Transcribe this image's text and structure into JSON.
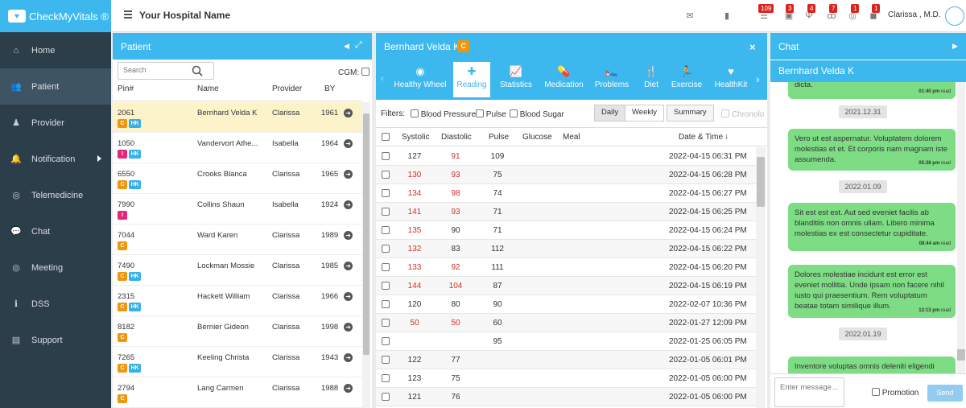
{
  "brand": "CheckMyVitals ®",
  "sidebar": [
    {
      "label": "Home",
      "icon": "home-icon"
    },
    {
      "label": "Patient",
      "icon": "users-icon",
      "active": true
    },
    {
      "label": "Provider",
      "icon": "provider-icon"
    },
    {
      "label": "Notification",
      "icon": "bell-icon"
    },
    {
      "label": "Telemedicine",
      "icon": "whatsapp-icon"
    },
    {
      "label": "Chat",
      "icon": "chat-icon"
    },
    {
      "label": "Meeting",
      "icon": "meeting-icon"
    },
    {
      "label": "DSS",
      "icon": "info-icon"
    },
    {
      "label": "Support",
      "icon": "support-icon"
    }
  ],
  "topbar": {
    "hospital": "Your Hospital Name",
    "user": "Clarissa , M.D.",
    "badges": [
      "109",
      "3",
      "4",
      "7",
      "1",
      "1"
    ]
  },
  "patient": {
    "title": "Patient",
    "search_placeholder": "Search",
    "cgm": "CGM:",
    "cols": [
      "Pin#",
      "Name",
      "Provider",
      "BY"
    ],
    "rows": [
      {
        "pin": "2061",
        "name": "Bernhard Velda K",
        "provider": "Clarissa",
        "by": "1961",
        "tags": [
          "C",
          "HK"
        ]
      },
      {
        "pin": "1050",
        "name": "Vandervort Athe...",
        "provider": "Isabella",
        "by": "1964",
        "tags": [
          "I",
          "HK"
        ]
      },
      {
        "pin": "6550",
        "name": "Crooks Blanca",
        "provider": "Clarissa",
        "by": "1965",
        "tags": [
          "C",
          "HK"
        ]
      },
      {
        "pin": "7990",
        "name": "Collins Shaun",
        "provider": "Isabella",
        "by": "1924",
        "tags": [
          "I"
        ]
      },
      {
        "pin": "7044",
        "name": "Ward Karen",
        "provider": "Clarissa",
        "by": "1989",
        "tags": [
          "C"
        ]
      },
      {
        "pin": "7490",
        "name": "Lockman Mossie",
        "provider": "Clarissa",
        "by": "1985",
        "tags": [
          "C",
          "HK"
        ]
      },
      {
        "pin": "2315",
        "name": "Hackett William",
        "provider": "Clarissa",
        "by": "1966",
        "tags": [
          "C",
          "HK"
        ]
      },
      {
        "pin": "8182",
        "name": "Bernier Gideon",
        "provider": "Clarissa",
        "by": "1998",
        "tags": [
          "C"
        ]
      },
      {
        "pin": "7265",
        "name": "Keeling Christa",
        "provider": "Clarissa",
        "by": "1943",
        "tags": [
          "C",
          "HK"
        ]
      },
      {
        "pin": "2794",
        "name": "Lang Carmen",
        "provider": "Clarissa",
        "by": "1988",
        "tags": [
          "C"
        ]
      }
    ]
  },
  "reading": {
    "title": "Bernhard Velda K",
    "badge": "C",
    "tabs": [
      "Healthy Wheel",
      "Reading",
      "Statistics",
      "Medication",
      "Problems",
      "Diet",
      "Exercise",
      "HealthKit"
    ],
    "filters": {
      "label": "Filters:",
      "bp": "Blood Pressure",
      "pulse": "Pulse",
      "sugar": "Blood Sugar",
      "daily": "Daily",
      "weekly": "Weekly",
      "summary": "Summary",
      "chrono": "Chronolo"
    },
    "cols": [
      "Systolic",
      "Diastolic",
      "Pulse",
      "Glucose",
      "Meal",
      "Date & Time"
    ],
    "rows": [
      {
        "sys": "127",
        "dia": "91",
        "pulse": "109",
        "dt": "2022-04-15 06:31 PM",
        "sr": 0,
        "dr": 1
      },
      {
        "sys": "130",
        "dia": "93",
        "pulse": "75",
        "dt": "2022-04-15 06:28 PM",
        "sr": 1,
        "dr": 1
      },
      {
        "sys": "134",
        "dia": "98",
        "pulse": "74",
        "dt": "2022-04-15 06:27 PM",
        "sr": 1,
        "dr": 1
      },
      {
        "sys": "141",
        "dia": "93",
        "pulse": "71",
        "dt": "2022-04-15 06:25 PM",
        "sr": 1,
        "dr": 1
      },
      {
        "sys": "135",
        "dia": "90",
        "pulse": "71",
        "dt": "2022-04-15 06:24 PM",
        "sr": 1,
        "dr": 0
      },
      {
        "sys": "132",
        "dia": "83",
        "pulse": "112",
        "dt": "2022-04-15 06:22 PM",
        "sr": 1,
        "dr": 0
      },
      {
        "sys": "133",
        "dia": "92",
        "pulse": "111",
        "dt": "2022-04-15 06:20 PM",
        "sr": 1,
        "dr": 1
      },
      {
        "sys": "144",
        "dia": "104",
        "pulse": "87",
        "dt": "2022-04-15 06:19 PM",
        "sr": 1,
        "dr": 1
      },
      {
        "sys": "120",
        "dia": "80",
        "pulse": "90",
        "dt": "2022-02-07 10:36 PM",
        "sr": 0,
        "dr": 0
      },
      {
        "sys": "50",
        "dia": "50",
        "pulse": "60",
        "dt": "2022-01-27 12:09 PM",
        "sr": 1,
        "dr": 1
      },
      {
        "sys": "",
        "dia": "",
        "pulse": "95",
        "dt": "2022-01-25 06:05 PM",
        "sr": 0,
        "dr": 0
      },
      {
        "sys": "122",
        "dia": "77",
        "pulse": "",
        "dt": "2022-01-05 06:01 PM",
        "sr": 0,
        "dr": 0
      },
      {
        "sys": "123",
        "dia": "75",
        "pulse": "",
        "dt": "2022-01-05 06:00 PM",
        "sr": 0,
        "dr": 0
      },
      {
        "sys": "121",
        "dia": "76",
        "pulse": "",
        "dt": "2022-01-05 06:00 PM",
        "sr": 0,
        "dr": 0
      }
    ]
  },
  "chat": {
    "title": "Chat",
    "patient": "Bernhard Velda K",
    "items": [
      {
        "type": "msg",
        "text": "dicta.",
        "time": "01:40 pm",
        "status": "read"
      },
      {
        "type": "date",
        "text": "2021.12.31"
      },
      {
        "type": "msg",
        "text": "Vero ut est aspernatur. Voluptatem dolorem molestias et et. Et corporis nam magnam iste assumenda.",
        "time": "05:28 pm",
        "status": "read"
      },
      {
        "type": "date",
        "text": "2022.01.09"
      },
      {
        "type": "msg",
        "text": "Sit est est est. Aut sed eveniet facilis ab blanditiis non omnis ullam. Libero minima molestias ex est consectetur cupiditate.",
        "time": "08:44 am",
        "status": "read"
      },
      {
        "type": "msg",
        "text": "Dolores molestiae incidunt est error est eveniet mollitia. Unde ipsam non facere nihil iusto qui praesentium. Rem voluptatum beatae totam similique illum.",
        "time": "12:13 pm",
        "status": "read"
      },
      {
        "type": "date",
        "text": "2022.01.19"
      },
      {
        "type": "msg",
        "text": "Inventore voluptas omnis deleniti eligendi",
        "time": "",
        "status": ""
      }
    ],
    "input_placeholder": "Enter message...",
    "promotion": "Promotion",
    "send": "Send"
  }
}
